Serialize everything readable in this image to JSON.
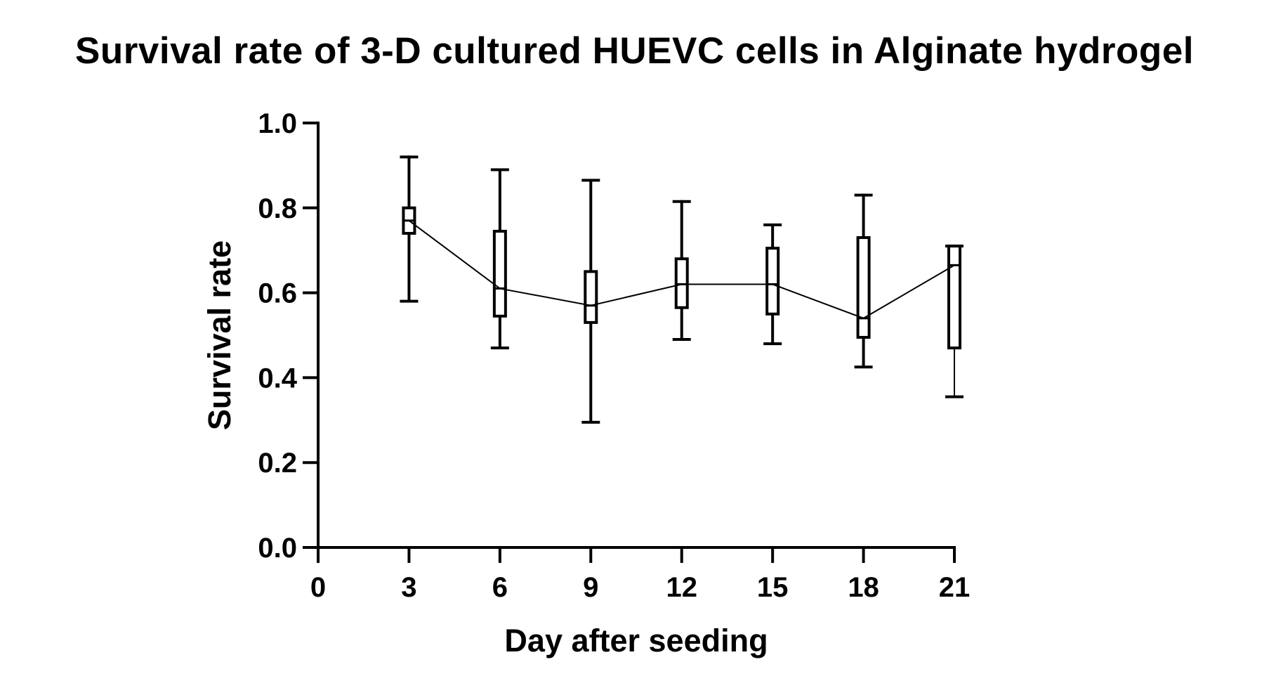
{
  "chart_data": {
    "type": "box",
    "title": "Survival rate of 3-D cultured HUEVC cells in Alginate hydrogel",
    "xlabel": "Day after seeding",
    "ylabel": "Survival rate",
    "xlim": [
      0,
      21
    ],
    "ylim": [
      0.0,
      1.0
    ],
    "x_ticks": [
      "0",
      "3",
      "6",
      "9",
      "12",
      "15",
      "18",
      "21"
    ],
    "y_ticks": [
      "0.0",
      "0.2",
      "0.4",
      "0.6",
      "0.8",
      "1.0"
    ],
    "grid": false,
    "legend": "none",
    "series": [
      {
        "boxes": [
          {
            "x": 3,
            "whisker_low": 0.58,
            "q1": 0.74,
            "median": 0.77,
            "q3": 0.8,
            "whisker_high": 0.92
          },
          {
            "x": 6,
            "whisker_low": 0.47,
            "q1": 0.545,
            "median": 0.61,
            "q3": 0.745,
            "whisker_high": 0.89
          },
          {
            "x": 9,
            "whisker_low": 0.295,
            "q1": 0.53,
            "median": 0.57,
            "q3": 0.65,
            "whisker_high": 0.865
          },
          {
            "x": 12,
            "whisker_low": 0.49,
            "q1": 0.565,
            "median": 0.62,
            "q3": 0.68,
            "whisker_high": 0.815
          },
          {
            "x": 15,
            "whisker_low": 0.48,
            "q1": 0.55,
            "median": 0.62,
            "q3": 0.705,
            "whisker_high": 0.76
          },
          {
            "x": 18,
            "whisker_low": 0.425,
            "q1": 0.495,
            "median": 0.54,
            "q3": 0.73,
            "whisker_high": 0.83
          },
          {
            "x": 21,
            "whisker_low": 0.355,
            "q1": 0.47,
            "median": 0.665,
            "q3": 0.71,
            "whisker_high": 0.71
          }
        ],
        "median_line": {
          "x": [
            3,
            6,
            9,
            12,
            15,
            18,
            21
          ],
          "y": [
            0.77,
            0.61,
            0.57,
            0.62,
            0.62,
            0.54,
            0.665
          ]
        }
      }
    ]
  }
}
